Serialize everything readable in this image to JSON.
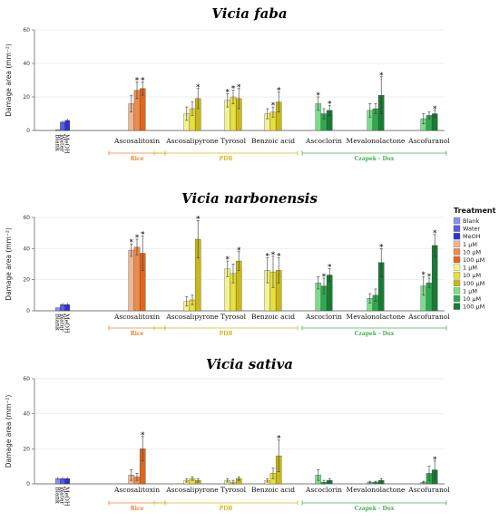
{
  "legend": {
    "title": "Treatment",
    "items": [
      {
        "label": "Blank",
        "color": "#8e8ef0"
      },
      {
        "label": "Water",
        "color": "#5b5be6"
      },
      {
        "label": "MeOH",
        "color": "#3030d8"
      },
      {
        "label": "1 µM",
        "color": "#f0b690"
      },
      {
        "label": "10 µM",
        "color": "#ec8c4c"
      },
      {
        "label": "100 µM",
        "color": "#e0661e"
      },
      {
        "label": "1 µM",
        "color": "#f4f48c"
      },
      {
        "label": "10 µM",
        "color": "#e8e040"
      },
      {
        "label": "100 µM",
        "color": "#c8b818"
      },
      {
        "label": "1 µM",
        "color": "#7cdc8c"
      },
      {
        "label": "10 µM",
        "color": "#30a850"
      },
      {
        "label": "100 µM",
        "color": "#1a7a34"
      }
    ]
  },
  "groups": [
    {
      "label": "Rice",
      "color": "#f08030"
    },
    {
      "label": "PDB",
      "color": "#d4b820"
    },
    {
      "label": "Czapek - Dox",
      "color": "#40b050"
    }
  ],
  "chart_data": [
    {
      "type": "bar",
      "title": "Vicia faba",
      "ylabel": "Damage area (mm⁻²)",
      "ylim": [
        0,
        60
      ],
      "yticks": [
        "0",
        "20",
        "40",
        "60"
      ],
      "controls": {
        "labels": [
          "Blank",
          "Water",
          "MeOH"
        ],
        "values": [
          0.5,
          5,
          6
        ],
        "errors": [
          0,
          1,
          1
        ]
      },
      "categories": [
        "Ascosalitoxin",
        "Ascosalipyrone",
        "Tyrosol",
        "Benzoic acid",
        "Ascoclorin",
        "Mevalonolactone",
        "Ascofuranol"
      ],
      "series": [
        {
          "name": "1 µM",
          "values": [
            16,
            10,
            18,
            10,
            16,
            12,
            7
          ],
          "errors": [
            5,
            4,
            4,
            3,
            4,
            4,
            3
          ],
          "sig": [
            false,
            false,
            true,
            false,
            true,
            false,
            false
          ]
        },
        {
          "name": "10 µM",
          "values": [
            24,
            13,
            20,
            11,
            10,
            13,
            9
          ],
          "errors": [
            5,
            4,
            4,
            3,
            3,
            3,
            2
          ],
          "sig": [
            true,
            false,
            true,
            true,
            false,
            false,
            false
          ]
        },
        {
          "name": "100 µM",
          "values": [
            25,
            19,
            19,
            17,
            12,
            21,
            10
          ],
          "errors": [
            4,
            6,
            6,
            6,
            3,
            11,
            2
          ],
          "sig": [
            true,
            true,
            true,
            true,
            true,
            true,
            true
          ]
        }
      ]
    },
    {
      "type": "bar",
      "title": "Vicia narbonensis",
      "ylabel": "Damage area (mm⁻²)",
      "ylim": [
        0,
        60
      ],
      "yticks": [
        "0",
        "20",
        "40",
        "60"
      ],
      "controls": {
        "labels": [
          "Blank",
          "Water",
          "MeOH"
        ],
        "values": [
          2,
          4,
          4
        ],
        "errors": [
          0,
          1,
          1
        ]
      },
      "categories": [
        "Ascosalitoxin",
        "Ascosalipyrone",
        "Tyrosol",
        "Benzoic acid",
        "Ascoclorin",
        "Mevalonolactone",
        "Ascofuranol"
      ],
      "series": [
        {
          "name": "1 µM",
          "values": [
            39,
            6,
            27,
            26,
            18,
            8,
            16
          ],
          "errors": [
            4,
            3,
            5,
            8,
            4,
            3,
            6
          ],
          "sig": [
            true,
            false,
            true,
            true,
            false,
            false,
            true
          ]
        },
        {
          "name": "10 µM",
          "values": [
            41,
            7,
            24,
            25,
            16,
            10,
            18
          ],
          "errors": [
            5,
            3,
            6,
            10,
            5,
            4,
            3
          ],
          "sig": [
            true,
            false,
            false,
            true,
            true,
            false,
            true
          ]
        },
        {
          "name": "100 µM",
          "values": [
            37,
            46,
            32,
            26,
            23,
            31,
            42
          ],
          "errors": [
            11,
            12,
            6,
            8,
            4,
            9,
            7
          ],
          "sig": [
            true,
            true,
            true,
            true,
            true,
            true,
            true
          ]
        }
      ]
    },
    {
      "type": "bar",
      "title": "Vicia sativa",
      "ylabel": "Damage area (mm⁻²)",
      "ylim": [
        0,
        60
      ],
      "yticks": [
        "0",
        "20",
        "40",
        "60"
      ],
      "controls": {
        "labels": [
          "Blank",
          "Water",
          "MeOH"
        ],
        "values": [
          3,
          3,
          3
        ],
        "errors": [
          1,
          1,
          1
        ]
      },
      "categories": [
        "Ascosalitoxin",
        "Ascosalipyrone",
        "Tyrosol",
        "Benzoic acid",
        "Ascoclorin",
        "Mevalonolactone",
        "Ascofuranol"
      ],
      "series": [
        {
          "name": "1 µM",
          "values": [
            5,
            2,
            2,
            2,
            5,
            1,
            1
          ],
          "errors": [
            3,
            1,
            1,
            1,
            3,
            0.5,
            0.5
          ],
          "sig": [
            false,
            false,
            false,
            false,
            false,
            false,
            false
          ]
        },
        {
          "name": "10 µM",
          "values": [
            4,
            3,
            1,
            6,
            1,
            1,
            6
          ],
          "errors": [
            2,
            1,
            1,
            3,
            1,
            0.5,
            4
          ],
          "sig": [
            false,
            false,
            false,
            false,
            false,
            false,
            false
          ]
        },
        {
          "name": "100 µM",
          "values": [
            20,
            2,
            3,
            16,
            2,
            2,
            8
          ],
          "errors": [
            7,
            1,
            1,
            9,
            1,
            1,
            5
          ],
          "sig": [
            true,
            false,
            false,
            true,
            false,
            false,
            true
          ]
        }
      ]
    }
  ]
}
